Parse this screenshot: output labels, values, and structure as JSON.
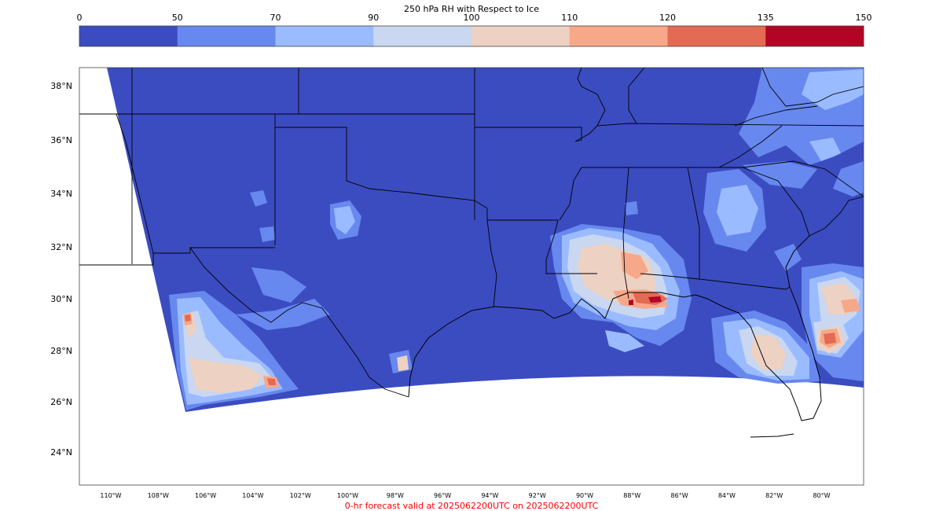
{
  "colorbar": {
    "title": "250 hPa RH with Respect to Ice",
    "ticks": [
      "0",
      "50",
      "70",
      "90",
      "100",
      "110",
      "120",
      "135",
      "150"
    ],
    "bins": [
      {
        "from": 0,
        "to": 50,
        "color": "#3b4cc0"
      },
      {
        "from": 50,
        "to": 70,
        "color": "#6788ee"
      },
      {
        "from": 70,
        "to": 90,
        "color": "#9abbff"
      },
      {
        "from": 90,
        "to": 100,
        "color": "#c9d7f0"
      },
      {
        "from": 100,
        "to": 110,
        "color": "#edd1c2"
      },
      {
        "from": 110,
        "to": 120,
        "color": "#f7a889"
      },
      {
        "from": 120,
        "to": 135,
        "color": "#e36a53"
      },
      {
        "from": 135,
        "to": 150,
        "color": "#b40426"
      }
    ]
  },
  "map": {
    "projection": "lambert-conformal",
    "extent": {
      "lon_min": -111.5,
      "lon_max": -78.5,
      "lat_min": 22.7,
      "lat_max": 38.7
    },
    "lat_labels": [
      "38°N",
      "36°N",
      "34°N",
      "32°N",
      "30°N",
      "28°N",
      "26°N",
      "24°N"
    ],
    "lon_labels": [
      "110°W",
      "108°W",
      "106°W",
      "104°W",
      "102°W",
      "100°W",
      "98°W",
      "96°W",
      "94°W",
      "92°W",
      "90°W",
      "88°W",
      "86°W",
      "84°W",
      "82°W",
      "80°W"
    ],
    "background_color": "#3b4cc0",
    "outside_domain_color": "#ffffff",
    "border_color": "#000000"
  },
  "footer": {
    "text": "0-hr forecast valid at 2025062200UTC on 2025062200UTC",
    "color": "#ff0000"
  }
}
